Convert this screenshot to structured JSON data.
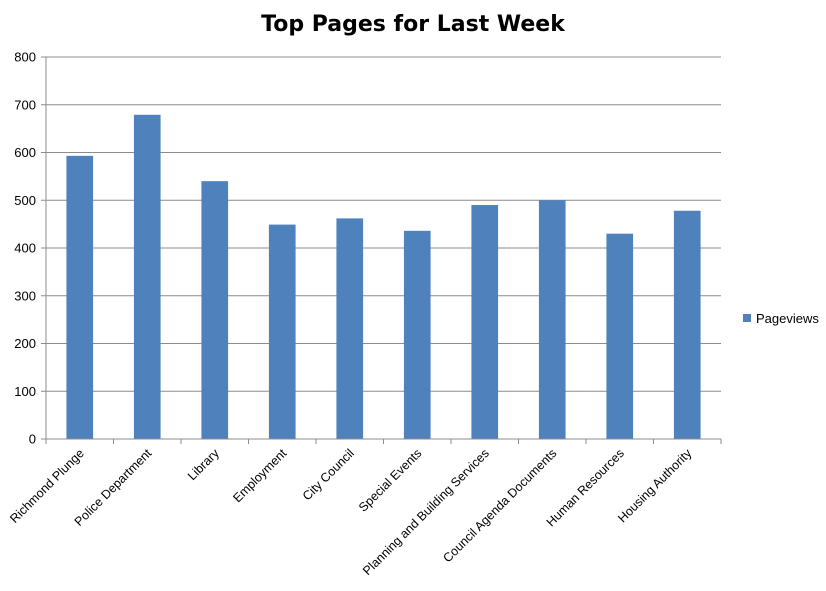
{
  "chart_data": {
    "type": "bar",
    "title": "Top Pages for Last Week",
    "xlabel": "",
    "ylabel": "",
    "categories": [
      "Richmond Plunge",
      "Police Department",
      "Library",
      "Employment",
      "City Council",
      "Special Events",
      "Planning and Building Services",
      "Council Agenda Documents",
      "Human Resources",
      "Housing Authority"
    ],
    "series": [
      {
        "name": "Pageviews",
        "values": [
          593,
          679,
          540,
          449,
          462,
          436,
          490,
          500,
          430,
          478
        ],
        "color": "#4F81BD"
      }
    ],
    "ylim": [
      0,
      800
    ],
    "yticks": [
      0,
      100,
      200,
      300,
      400,
      500,
      600,
      700,
      800
    ],
    "grid": true,
    "legend": "right"
  }
}
